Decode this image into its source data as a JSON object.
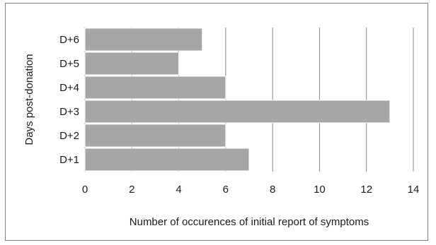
{
  "chart_data": {
    "type": "bar",
    "orientation": "horizontal",
    "categories": [
      "D+1",
      "D+2",
      "D+3",
      "D+4",
      "D+5",
      "D+6"
    ],
    "values": [
      7,
      6,
      13,
      6,
      4,
      5
    ],
    "title": "",
    "xlabel": "Number of occurences of initial report of  symptoms",
    "ylabel": "Days post-donation",
    "xlim": [
      0,
      14
    ],
    "xticks": [
      0,
      2,
      4,
      6,
      8,
      10,
      12,
      14
    ],
    "grid": true,
    "legend": "none",
    "bar_color": "#a6a6a6",
    "bar_edge_color": "#ffffff",
    "grid_color": "#888888"
  }
}
